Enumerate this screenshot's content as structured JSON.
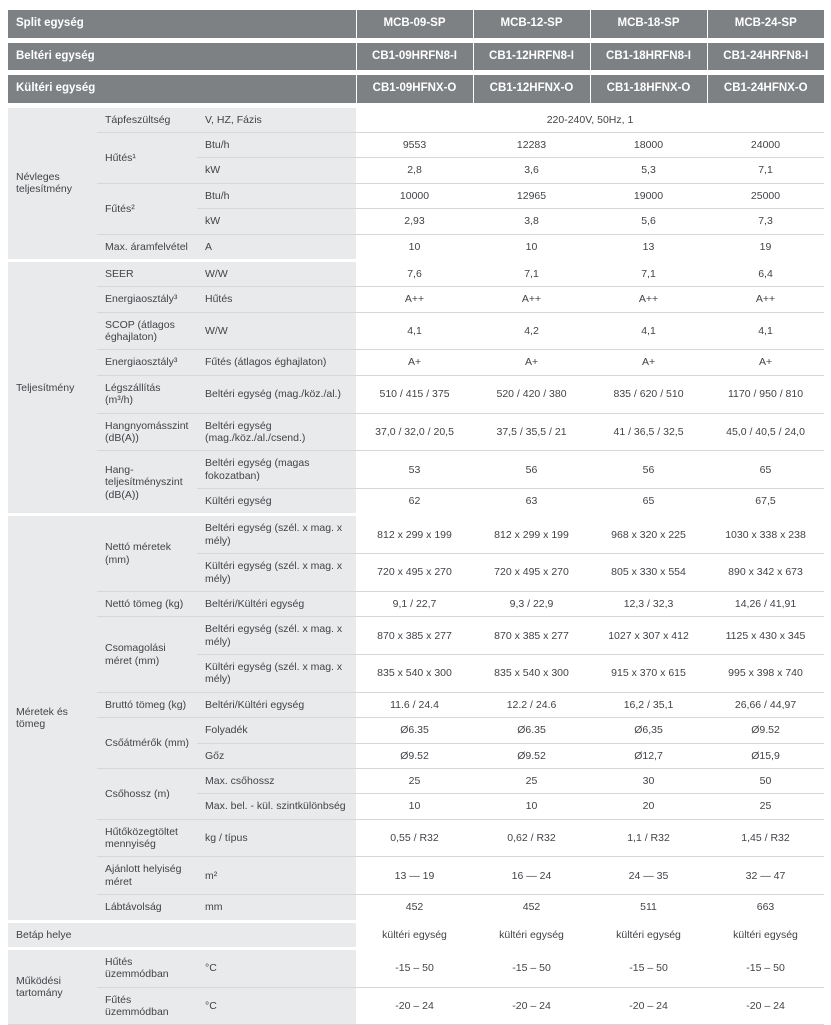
{
  "colors": {
    "header_bg": "#7e8184",
    "header_text": "#ffffff",
    "label_bg": "#e9eaeb",
    "row_border": "#d6d7d9",
    "body_text": "#414347",
    "page_bg": "#ffffff"
  },
  "table": {
    "header_rows": [
      {
        "label": "Split egység",
        "models": [
          "MCB-09-SP",
          "MCB-12-SP",
          "MCB-18-SP",
          "MCB-24-SP"
        ]
      },
      {
        "label": "Beltéri egység",
        "models": [
          "CB1-09HRFN8-I",
          "CB1-12HRFN8-I",
          "CB1-18HRFN8-I",
          "CB1-24HRFN8-I"
        ]
      },
      {
        "label": "Kültéri egység",
        "models": [
          "CB1-09HFNX-O",
          "CB1-12HFNX-O",
          "CB1-18HFNX-O",
          "CB1-24HFNX-O"
        ]
      }
    ],
    "sections": [
      {
        "label": "Névleges teljesítmény",
        "rows": [
          {
            "param": "Tápfeszültség",
            "unit": "V, HZ, Fázis",
            "span_value": "220-240V, 50Hz, 1"
          },
          {
            "param": "Hűtés¹",
            "param_rowspan": 2,
            "unit": "Btu/h",
            "values": [
              "9553",
              "12283",
              "18000",
              "24000"
            ]
          },
          {
            "unit": "kW",
            "values": [
              "2,8",
              "3,6",
              "5,3",
              "7,1"
            ]
          },
          {
            "param": "Fűtés²",
            "param_rowspan": 2,
            "unit": "Btu/h",
            "values": [
              "10000",
              "12965",
              "19000",
              "25000"
            ]
          },
          {
            "unit": "kW",
            "values": [
              "2,93",
              "3,8",
              "5,6",
              "7,3"
            ]
          },
          {
            "param": "Max. áramfelvétel",
            "unit": "A",
            "values": [
              "10",
              "10",
              "13",
              "19"
            ]
          }
        ]
      },
      {
        "label": "Teljesítmény",
        "rows": [
          {
            "param": "SEER",
            "unit": "W/W",
            "values": [
              "7,6",
              "7,1",
              "7,1",
              "6,4"
            ]
          },
          {
            "param": "Energiaosztály³",
            "unit": "Hűtés",
            "values": [
              "A++",
              "A++",
              "A++",
              "A++"
            ]
          },
          {
            "param": "SCOP (átlagos éghajlaton)",
            "unit": "W/W",
            "values": [
              "4,1",
              "4,2",
              "4,1",
              "4,1"
            ]
          },
          {
            "param": "Energiaosztály³",
            "unit": "Fűtés (átlagos éghajlaton)",
            "values": [
              "A+",
              "A+",
              "A+",
              "A+"
            ]
          },
          {
            "param": "Légszállítás (m³/h)",
            "unit": "Beltéri egység (mag./köz./al.)",
            "values": [
              "510 / 415 / 375",
              "520 / 420 / 380",
              "835 / 620 / 510",
              "1170 / 950 / 810"
            ]
          },
          {
            "param": "Hangnyomásszint (dB(A))",
            "unit": "Beltéri egység (mag./köz./al./csend.)",
            "values": [
              "37,0 / 32,0 / 20,5",
              "37,5 / 35,5 / 21",
              "41 / 36,5 / 32,5",
              "45,0 / 40,5 / 24,0"
            ]
          },
          {
            "param": "Hang-teljesítményszint (dB(A))",
            "param_rowspan": 2,
            "unit": "Beltéri egység (magas fokozatban)",
            "values": [
              "53",
              "56",
              "56",
              "65"
            ]
          },
          {
            "unit": "Kültéri egység",
            "values": [
              "62",
              "63",
              "65",
              "67,5"
            ]
          }
        ]
      },
      {
        "label": "Méretek és tömeg",
        "rows": [
          {
            "param": "Nettó méretek (mm)",
            "param_rowspan": 2,
            "unit": "Beltéri egység (szél. x mag. x mély)",
            "values": [
              "812 x 299 x 199",
              "812 x 299 x 199",
              "968 x 320 x 225",
              "1030 x 338 x 238"
            ]
          },
          {
            "unit": "Kültéri egység (szél. x mag. x mély)",
            "values": [
              "720 x 495 x 270",
              "720 x 495 x 270",
              "805 x 330 x 554",
              "890 x 342 x 673"
            ]
          },
          {
            "param": "Nettó tömeg (kg)",
            "unit": "Beltéri/Kültéri egység",
            "values": [
              "9,1 / 22,7",
              "9,3 / 22,9",
              "12,3 / 32,3",
              "14,26 / 41,91"
            ]
          },
          {
            "param": "Csomagolási méret (mm)",
            "param_rowspan": 2,
            "unit": "Beltéri egység (szél. x mag. x mély)",
            "values": [
              "870 x 385 x 277",
              "870 x 385 x 277",
              "1027 x 307 x 412",
              "1125 x 430 x 345"
            ]
          },
          {
            "unit": "Kültéri egység (szél. x mag. x mély)",
            "values": [
              "835 x 540 x 300",
              "835 x 540 x 300",
              "915 x 370 x 615",
              "995 x 398 x 740"
            ]
          },
          {
            "param": "Bruttó tömeg (kg)",
            "unit": "Beltéri/Kültéri egység",
            "values": [
              "11.6 / 24.4",
              "12.2 / 24.6",
              "16,2 / 35,1",
              "26,66 / 44,97"
            ]
          },
          {
            "param": "Csőátmérők (mm)",
            "param_rowspan": 2,
            "unit": "Folyadék",
            "values": [
              "Ø6.35",
              "Ø6.35",
              "Ø6,35",
              "Ø9.52"
            ]
          },
          {
            "unit": "Gőz",
            "values": [
              "Ø9.52",
              "Ø9.52",
              "Ø12,7",
              "Ø15,9"
            ]
          },
          {
            "param": "Csőhossz (m)",
            "param_rowspan": 2,
            "unit": "Max. csőhossz",
            "values": [
              "25",
              "25",
              "30",
              "50"
            ]
          },
          {
            "unit": "Max. bel. - kül. szintkülönbség",
            "values": [
              "10",
              "10",
              "20",
              "25"
            ]
          },
          {
            "param": "Hűtőközegtöltet mennyiség",
            "unit": "kg / típus",
            "values": [
              "0,55 / R32",
              "0,62 / R32",
              "1,1 / R32",
              "1,45 / R32"
            ]
          },
          {
            "param": "Ajánlott helyiség méret",
            "unit": "m²",
            "values": [
              "13 — 19",
              "16 — 24",
              "24 — 35",
              "32 — 47"
            ]
          },
          {
            "param": "Lábtávolság",
            "unit": "mm",
            "values": [
              "452",
              "452",
              "511",
              "663"
            ]
          }
        ]
      },
      {
        "label": "Betáp helye",
        "label_colspan": 3,
        "rows": [
          {
            "values": [
              "kültéri egység",
              "kültéri egység",
              "kültéri egység",
              "kültéri egység"
            ]
          }
        ]
      },
      {
        "label": "Működési tartomány",
        "rows": [
          {
            "param": "Hűtés üzemmódban",
            "unit": "°C",
            "values": [
              "-15 – 50",
              "-15 – 50",
              "-15 – 50",
              "-15 – 50"
            ]
          },
          {
            "param": "Fűtés üzemmódban",
            "unit": "°C",
            "values": [
              "-20 – 24",
              "-20 – 24",
              "-20 – 24",
              "-20 – 24"
            ]
          }
        ]
      }
    ]
  }
}
